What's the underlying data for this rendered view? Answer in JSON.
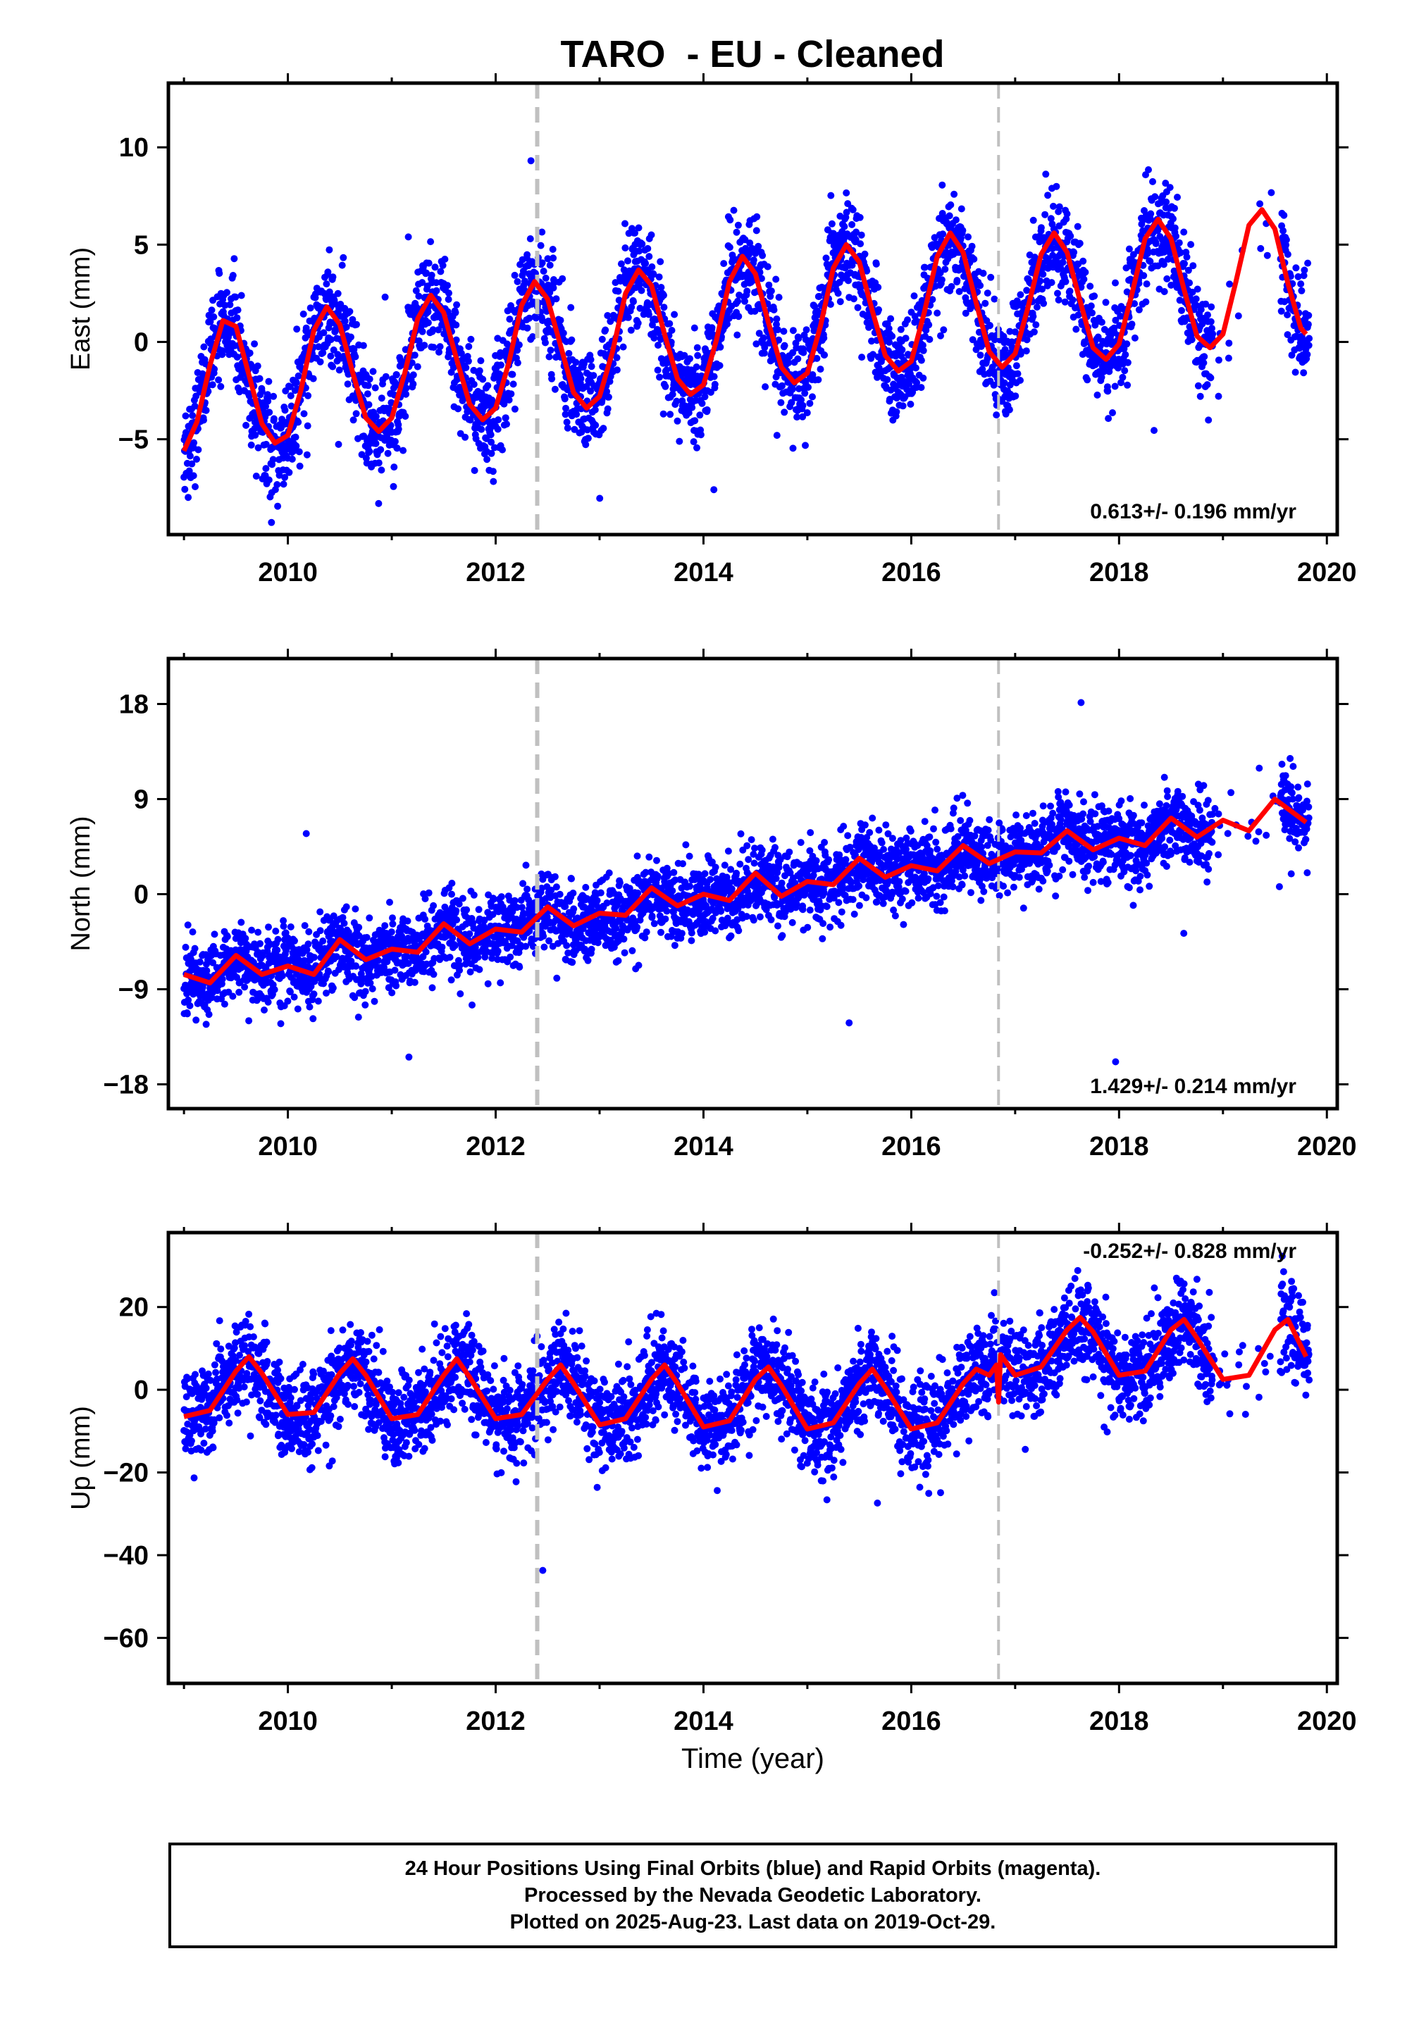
{
  "figure_title": "TARO  - EU - Cleaned",
  "footer": {
    "line1": "24 Hour Positions Using Final Orbits (blue) and Rapid Orbits (magenta).",
    "line2": "Processed by the Nevada Geodetic Laboratory.",
    "line3": "Plotted on 2025-Aug-23. Last data on 2019-Oct-29."
  },
  "colors": {
    "final_orbits": "#0000ff",
    "rapid_orbits": "#ff00ff",
    "model_fit": "#ff0000",
    "steps": "#c0c0c0"
  },
  "chart_data": [
    {
      "type": "scatter",
      "panel": "east",
      "ylabel": "East (mm)",
      "xlabel": "",
      "xlim": [
        2008.85,
        2020.1
      ],
      "ylim": [
        -9.9,
        13.3
      ],
      "x_ticks": [
        2010,
        2012,
        2014,
        2016,
        2018,
        2020
      ],
      "y_ticks": [
        -5,
        0,
        5,
        10
      ],
      "rate_label": "0.613+/- 0.196 mm/yr",
      "vertical_lines": [
        2012.4,
        2016.84
      ],
      "fit_curve": {
        "x": [
          2009.0,
          2009.125,
          2009.25,
          2009.375,
          2009.5,
          2009.625,
          2009.75,
          2009.875,
          2010.0,
          2010.125,
          2010.25,
          2010.375,
          2010.5,
          2010.625,
          2010.75,
          2010.875,
          2011.0,
          2011.125,
          2011.25,
          2011.375,
          2011.5,
          2011.625,
          2011.75,
          2011.875,
          2012.0,
          2012.125,
          2012.25,
          2012.375,
          2012.5,
          2012.625,
          2012.75,
          2012.875,
          2013.0,
          2013.125,
          2013.25,
          2013.375,
          2013.5,
          2013.625,
          2013.75,
          2013.875,
          2014.0,
          2014.125,
          2014.25,
          2014.375,
          2014.5,
          2014.625,
          2014.75,
          2014.875,
          2015.0,
          2015.125,
          2015.25,
          2015.375,
          2015.5,
          2015.625,
          2015.75,
          2015.875,
          2016.0,
          2016.125,
          2016.25,
          2016.375,
          2016.5,
          2016.625,
          2016.75,
          2016.875,
          2017.0,
          2017.125,
          2017.25,
          2017.375,
          2017.5,
          2017.625,
          2017.75,
          2017.875,
          2018.0,
          2018.125,
          2018.25,
          2018.375,
          2018.5,
          2018.625,
          2018.75,
          2018.875,
          2019.0,
          2019.125,
          2019.25,
          2019.375,
          2019.5,
          2019.625,
          2019.75,
          2019.8
        ],
        "y": [
          -5.6,
          -4.1,
          -1.2,
          1.1,
          0.8,
          -1.7,
          -4.2,
          -5.2,
          -4.8,
          -2.5,
          0.6,
          1.8,
          0.9,
          -1.6,
          -3.9,
          -4.6,
          -3.9,
          -1.6,
          1.2,
          2.4,
          1.5,
          -0.9,
          -3.2,
          -4.0,
          -3.4,
          -1.1,
          1.9,
          3.1,
          2.2,
          -0.2,
          -2.6,
          -3.4,
          -2.8,
          -0.5,
          2.5,
          3.7,
          2.9,
          0.4,
          -1.9,
          -2.7,
          -2.2,
          0.1,
          3.1,
          4.4,
          3.5,
          1.0,
          -1.3,
          -2.1,
          -1.6,
          0.8,
          3.8,
          5.0,
          4.1,
          1.6,
          -0.7,
          -1.5,
          -1.0,
          1.5,
          4.4,
          5.6,
          4.6,
          2.0,
          -0.5,
          -1.3,
          -0.6,
          1.8,
          4.5,
          5.6,
          4.6,
          2.1,
          -0.3,
          -0.9,
          -0.1,
          2.5,
          5.3,
          6.3,
          5.3,
          2.7,
          0.3,
          -0.3,
          0.4,
          3.1,
          6.0,
          6.8,
          5.8,
          3.0,
          0.7,
          0.4
        ]
      }
    },
    {
      "type": "scatter",
      "panel": "north",
      "ylabel": "North (mm)",
      "xlabel": "",
      "xlim": [
        2008.85,
        2020.1
      ],
      "ylim": [
        -20.3,
        22.3
      ],
      "x_ticks": [
        2010,
        2012,
        2014,
        2016,
        2018,
        2020
      ],
      "y_ticks": [
        -18,
        -9,
        0,
        9,
        18
      ],
      "rate_label": "1.429+/- 0.214 mm/yr",
      "vertical_lines": [
        2012.4,
        2016.84
      ],
      "fit_curve": {
        "x": [
          2009.0,
          2009.25,
          2009.5,
          2009.75,
          2010.0,
          2010.25,
          2010.5,
          2010.75,
          2011.0,
          2011.25,
          2011.5,
          2011.75,
          2012.0,
          2012.25,
          2012.5,
          2012.75,
          2013.0,
          2013.25,
          2013.5,
          2013.75,
          2014.0,
          2014.25,
          2014.5,
          2014.75,
          2015.0,
          2015.25,
          2015.5,
          2015.75,
          2016.0,
          2016.25,
          2016.5,
          2016.75,
          2017.0,
          2017.25,
          2017.5,
          2017.75,
          2018.0,
          2018.25,
          2018.5,
          2018.75,
          2019.0,
          2019.25,
          2019.5,
          2019.8
        ],
        "y": [
          -7.6,
          -8.4,
          -5.8,
          -7.6,
          -6.8,
          -7.6,
          -4.3,
          -6.2,
          -5.2,
          -5.5,
          -2.8,
          -4.7,
          -3.3,
          -3.6,
          -1.2,
          -3.0,
          -1.8,
          -2.0,
          0.6,
          -1.1,
          0.0,
          -0.6,
          2.0,
          -0.2,
          1.2,
          0.9,
          3.4,
          1.6,
          2.7,
          2.2,
          4.6,
          2.9,
          4.0,
          3.9,
          6.0,
          4.2,
          5.3,
          4.6,
          7.2,
          5.4,
          7.0,
          6.0,
          9.0,
          6.8
        ]
      }
    },
    {
      "type": "scatter",
      "panel": "up",
      "ylabel": "Up (mm)",
      "xlabel": "Time (year)",
      "xlim": [
        2008.85,
        2020.1
      ],
      "ylim": [
        -71,
        38
      ],
      "x_ticks": [
        2010,
        2012,
        2014,
        2016,
        2018,
        2020
      ],
      "y_ticks": [
        -60,
        -40,
        -20,
        0,
        20
      ],
      "rate_label": "-0.252+/- 0.828 mm/yr",
      "vertical_lines": [
        2012.4,
        2016.84
      ],
      "fit_curve": {
        "x": [
          2009.0,
          2009.25,
          2009.5,
          2009.625,
          2009.75,
          2010.0,
          2010.25,
          2010.5,
          2010.625,
          2010.75,
          2011.0,
          2011.25,
          2011.5,
          2011.625,
          2011.75,
          2012.0,
          2012.25,
          2012.5,
          2012.625,
          2012.75,
          2013.0,
          2013.25,
          2013.5,
          2013.625,
          2013.75,
          2014.0,
          2014.25,
          2014.5,
          2014.625,
          2014.75,
          2015.0,
          2015.25,
          2015.5,
          2015.625,
          2015.75,
          2016.0,
          2016.25,
          2016.5,
          2016.625,
          2016.75,
          2016.82,
          2016.84,
          2016.86,
          2017.0,
          2017.25,
          2017.5,
          2017.625,
          2017.75,
          2018.0,
          2018.25,
          2018.5,
          2018.625,
          2018.75,
          2019.0,
          2019.25,
          2019.5,
          2019.625,
          2019.8
        ],
        "y": [
          -6.5,
          -5.0,
          4.5,
          8.0,
          4.0,
          -6.0,
          -5.5,
          4.0,
          7.5,
          3.5,
          -7.0,
          -6.0,
          3.5,
          7.5,
          3.0,
          -7.0,
          -6.0,
          2.5,
          6.0,
          1.5,
          -8.5,
          -7.0,
          2.5,
          6.0,
          1.5,
          -9.0,
          -7.5,
          2.5,
          5.5,
          1.0,
          -9.5,
          -8.0,
          1.5,
          5.0,
          0.5,
          -9.5,
          -8.0,
          1.5,
          5.0,
          3.5,
          6.0,
          -3.0,
          8.5,
          3.5,
          5.5,
          14.5,
          17.5,
          14.0,
          3.5,
          4.5,
          14.5,
          17.0,
          12.5,
          2.5,
          3.5,
          14.5,
          17.0,
          8.0
        ]
      }
    }
  ]
}
